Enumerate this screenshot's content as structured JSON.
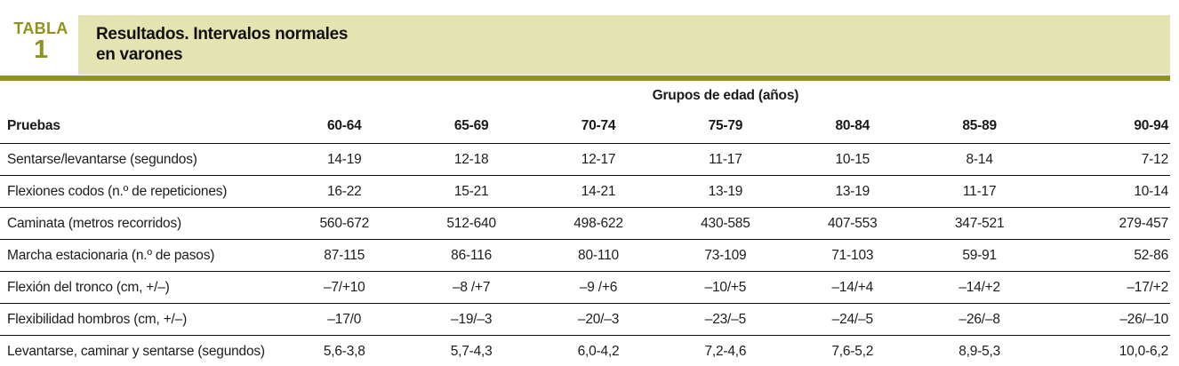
{
  "badge": {
    "kicker": "TABLA",
    "number": "1"
  },
  "header": {
    "title_lines": [
      "Resultados. Intervalos normales",
      "en varones"
    ]
  },
  "table": {
    "group_header": "Grupos de edad (años)",
    "columns": [
      "Pruebas",
      "60-64",
      "65-69",
      "70-74",
      "75-79",
      "80-84",
      "85-89",
      "90-94"
    ],
    "rows": [
      {
        "label": "Sentarse/levantarse (segundos)",
        "values": [
          "14-19",
          "12-18",
          "12-17",
          "11-17",
          "10-15",
          "8-14",
          "7-12"
        ]
      },
      {
        "label": "Flexiones codos (n.º de repeticiones)",
        "values": [
          "16-22",
          "15-21",
          "14-21",
          "13-19",
          "13-19",
          "11-17",
          "10-14"
        ]
      },
      {
        "label": "Caminata (metros recorridos)",
        "values": [
          "560-672",
          "512-640",
          "498-622",
          "430-585",
          "407-553",
          "347-521",
          "279-457"
        ]
      },
      {
        "label": "Marcha estacionaria (n.º de pasos)",
        "values": [
          "87-115",
          "86-116",
          "80-110",
          "73-109",
          "71-103",
          "59-91",
          "52-86"
        ]
      },
      {
        "label": "Flexión del tronco (cm, +/–)",
        "values": [
          "–7/+10",
          "–8 /+7",
          "–9 /+6",
          "–10/+5",
          "–14/+4",
          "–14/+2",
          "–17/+2"
        ]
      },
      {
        "label": "Flexibilidad hombros (cm, +/–)",
        "values": [
          "–17/0",
          "–19/–3",
          "–20/–3",
          "–23/–5",
          "–24/–5",
          "–26/–8",
          "–26/–10"
        ]
      },
      {
        "label": "Levantarse, caminar y sentarse (segundos)",
        "values": [
          "5,6-3,8",
          "5,7-4,3",
          "6,0-4,2",
          "7,2-4,6",
          "7,6-5,2",
          "8,9-5,3",
          "10,0-6,2"
        ]
      }
    ]
  },
  "colors": {
    "accent_olive": "#8f931d",
    "band_beige": "#e4e3b2",
    "footer_bar_gray": "#6e6e6e",
    "rule_black": "#111111"
  }
}
